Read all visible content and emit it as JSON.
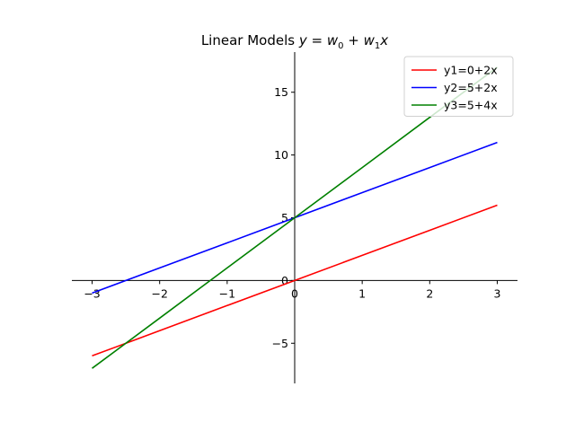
{
  "chart_data": {
    "type": "line",
    "title": "Linear Models y = w0 + w1x",
    "xlabel": "",
    "ylabel": "",
    "xlim": [
      -3.3,
      3.3
    ],
    "ylim": [
      -8.2,
      18.2
    ],
    "x_ticks": [
      -3,
      -2,
      -1,
      0,
      1,
      2,
      3
    ],
    "x_tick_labels": [
      "−3",
      "−2",
      "−1",
      "0",
      "1",
      "2",
      "3"
    ],
    "y_ticks": [
      -5,
      0,
      5,
      10,
      15
    ],
    "y_tick_labels": [
      "−5",
      "0",
      "5",
      "10",
      "15"
    ],
    "grid": false,
    "spines": "centered at origin",
    "legend_position": "top-right",
    "x": [
      -3,
      -2,
      -1,
      0,
      1,
      2,
      3
    ],
    "series": [
      {
        "name": "y1=0+2x",
        "color": "#ff0000",
        "values": [
          -6,
          -4,
          -2,
          0,
          2,
          4,
          6
        ]
      },
      {
        "name": "y2=5+2x",
        "color": "#0000ff",
        "values": [
          -1,
          1,
          3,
          5,
          7,
          9,
          11
        ]
      },
      {
        "name": "y3=5+4x",
        "color": "#008000",
        "values": [
          -7,
          -3,
          1,
          5,
          9,
          13,
          17
        ]
      }
    ]
  }
}
